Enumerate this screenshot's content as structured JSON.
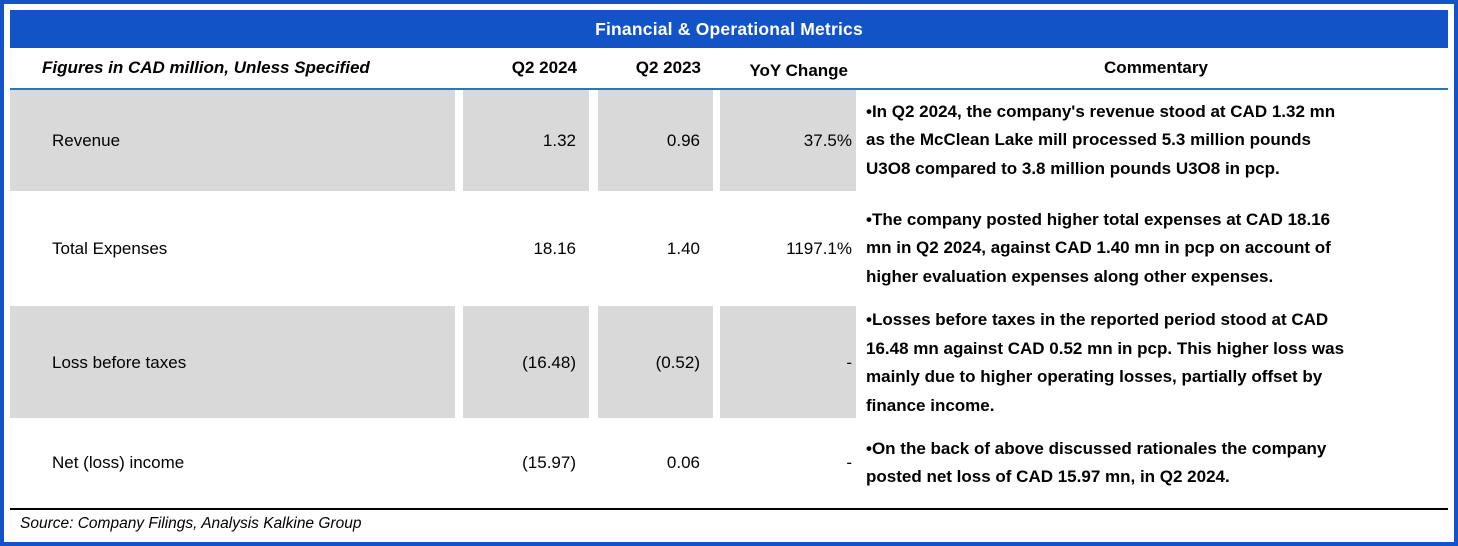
{
  "title": "Financial & Operational Metrics",
  "colors": {
    "accent_blue": "#1254c8",
    "header_rule_blue": "#2e75b6",
    "row_shade_gray": "#d9d9d9"
  },
  "table": {
    "columns": {
      "label": "Figures in CAD million, Unless Specified",
      "col_2024": "Q2 2024",
      "col_2023": "Q2 2023",
      "col_yoy": "YoY Change",
      "col_commentary": "Commentary"
    },
    "rows": [
      {
        "label": "Revenue",
        "q2_2024": "1.32",
        "q2_2023": "0.96",
        "yoy": "37.5%",
        "shaded": true,
        "commentary": "•In Q2 2024, the company's revenue stood at CAD 1.32 mn\nas the McClean Lake mill processed 5.3 million pounds\nU3O8 compared to 3.8 million pounds U3O8 in pcp."
      },
      {
        "label": "Total Expenses",
        "q2_2024": "18.16",
        "q2_2023": "1.40",
        "yoy": "1197.1%",
        "shaded": false,
        "commentary": "•The company posted higher total expenses at CAD 18.16\nmn in Q2 2024, against CAD 1.40 mn in pcp on account of\nhigher evaluation expenses along other expenses."
      },
      {
        "label": "Loss before taxes",
        "q2_2024": "(16.48)",
        "q2_2023": "(0.52)",
        "yoy": "-",
        "shaded": true,
        "commentary": "•Losses before taxes in the reported period stood at CAD\n16.48 mn against CAD 0.52 mn in pcp. This higher loss was\nmainly due to higher operating losses, partially offset by\nfinance income."
      },
      {
        "label": "Net (loss) income",
        "q2_2024": "(15.97)",
        "q2_2023": "0.06",
        "yoy": "-",
        "shaded": false,
        "commentary": "•On the back of above discussed rationales the company\nposted net loss of CAD 15.97 mn, in Q2 2024."
      }
    ]
  },
  "source": "Source: Company Filings, Analysis Kalkine Group"
}
